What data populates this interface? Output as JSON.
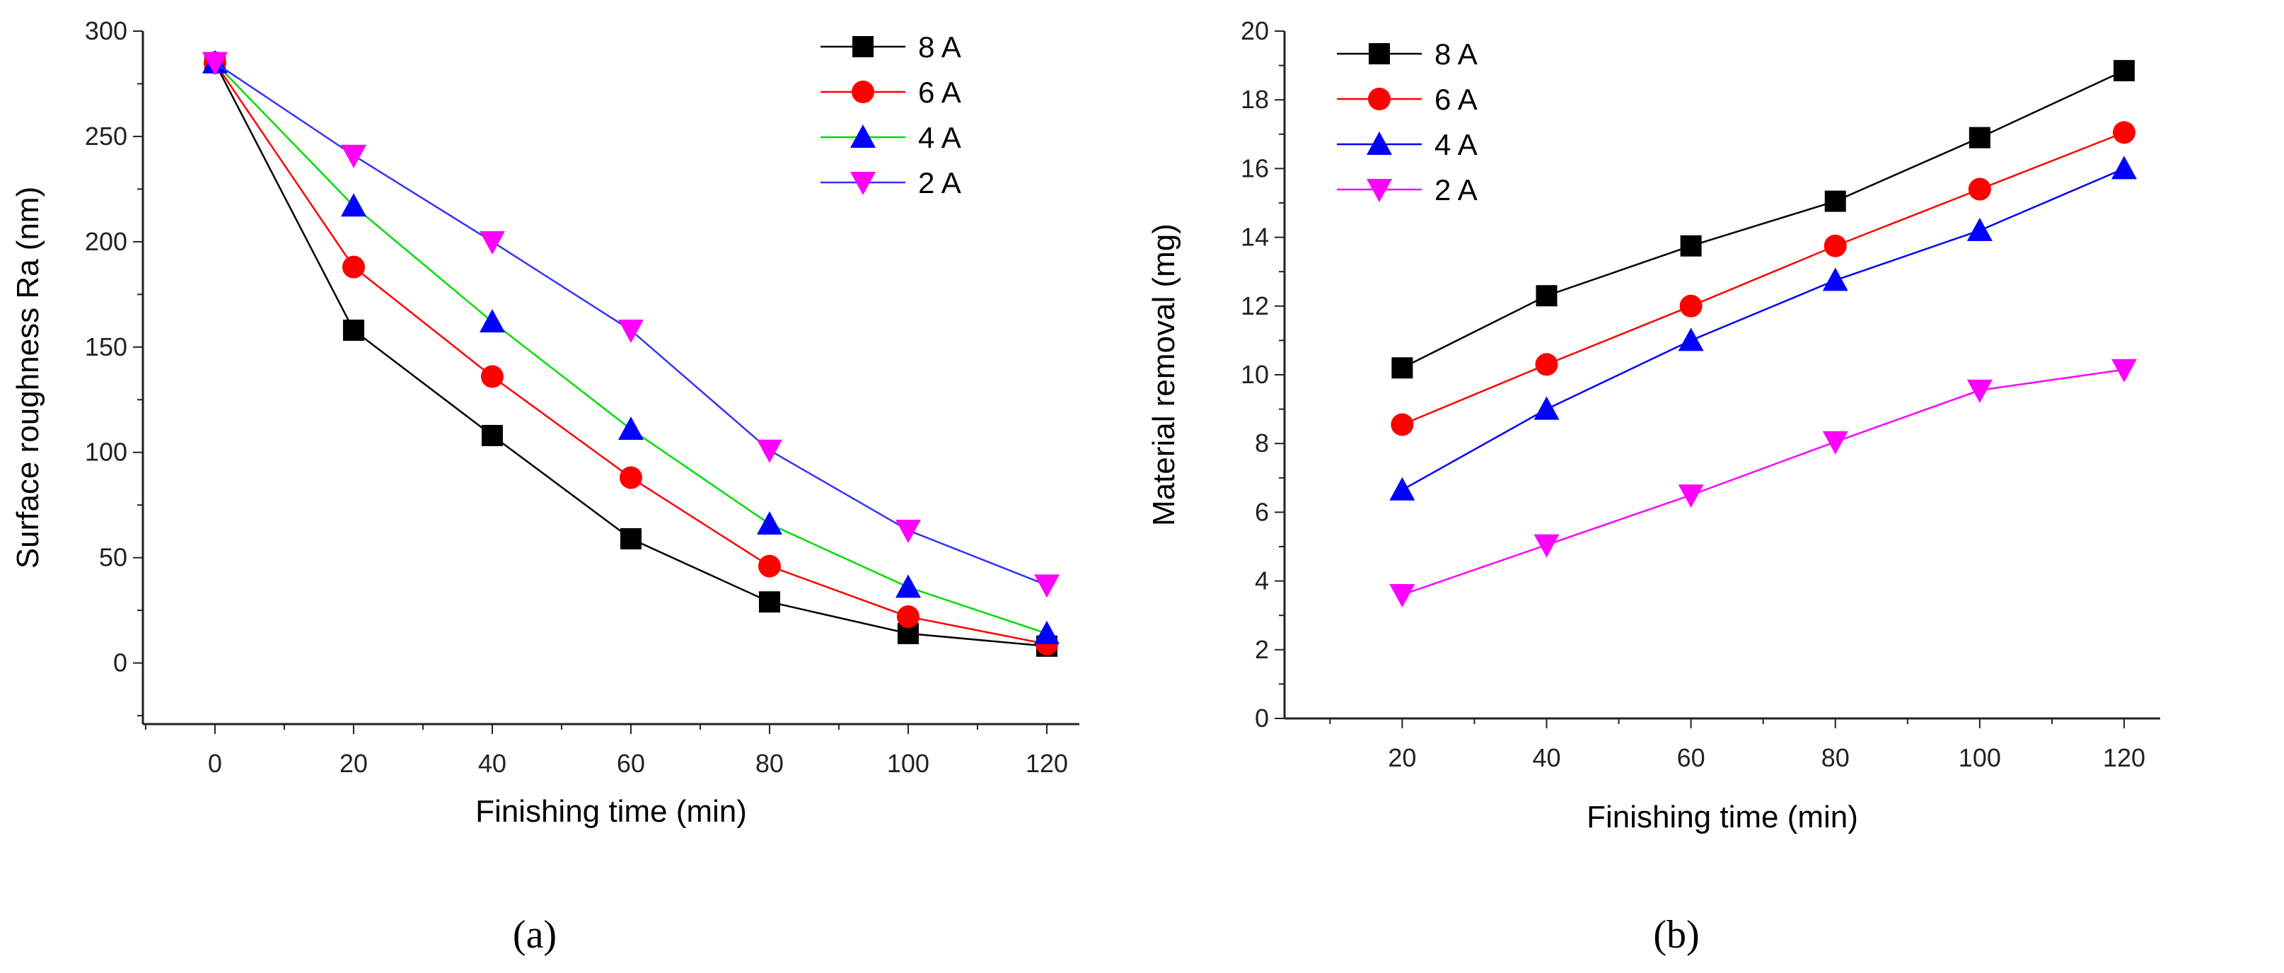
{
  "chart_data": [
    {
      "type": "line",
      "caption": "(a)",
      "caption_letter": "a",
      "xlabel": "Finishing time (min)",
      "ylabel": "Surface roughness Ra (nm)",
      "x": [
        0,
        20,
        40,
        60,
        80,
        100,
        120
      ],
      "xlim": [
        -10.4,
        124.7
      ],
      "ylim": [
        -29,
        300
      ],
      "xticks": [
        0,
        20,
        40,
        60,
        80,
        100,
        120
      ],
      "yticks": [
        0,
        50,
        100,
        150,
        200,
        250,
        300
      ],
      "grid": false,
      "legend_position": "top-right",
      "series": [
        {
          "name": "8 A",
          "values": [
            285,
            158,
            108,
            59,
            29,
            14,
            8
          ],
          "line_color": "#000000",
          "marker_color": "#000000",
          "marker": "square"
        },
        {
          "name": "6 A",
          "values": [
            285,
            188,
            136,
            88,
            46,
            22,
            9
          ],
          "line_color": "#ff0000",
          "marker_color": "#ff0000",
          "marker": "circle"
        },
        {
          "name": "4 A",
          "values": [
            285,
            217,
            162,
            111,
            66,
            36,
            14
          ],
          "line_color": "#00dd00",
          "marker_color": "#0000ff",
          "marker": "triangle-up"
        },
        {
          "name": "2 A",
          "values": [
            285,
            241,
            200,
            158,
            101,
            63,
            37
          ],
          "line_color": "#3333ff",
          "marker_color": "#ff00ff",
          "marker": "triangle-down"
        }
      ]
    },
    {
      "type": "line",
      "caption": "(b)",
      "caption_letter": "b",
      "xlabel": "Finishing time (min)",
      "ylabel": "Material removal (mg)",
      "x": [
        20,
        40,
        60,
        80,
        100,
        120
      ],
      "xlim": [
        3.7,
        125
      ],
      "ylim": [
        0,
        20
      ],
      "xticks": [
        20,
        40,
        60,
        80,
        100,
        120
      ],
      "yticks": [
        0,
        2,
        4,
        6,
        8,
        10,
        12,
        14,
        16,
        18,
        20
      ],
      "grid": false,
      "legend_position": "top-left",
      "series": [
        {
          "name": "8 A",
          "values": [
            10.2,
            12.3,
            13.75,
            15.05,
            16.9,
            18.85
          ],
          "line_color": "#000000",
          "marker_color": "#000000",
          "marker": "square"
        },
        {
          "name": "6 A",
          "values": [
            8.55,
            10.3,
            12.0,
            13.75,
            15.4,
            17.05
          ],
          "line_color": "#ff0000",
          "marker_color": "#ff0000",
          "marker": "circle"
        },
        {
          "name": "4 A",
          "values": [
            6.65,
            9.0,
            11.0,
            12.75,
            14.2,
            16.0
          ],
          "line_color": "#0000ff",
          "marker_color": "#0000ff",
          "marker": "triangle-up"
        },
        {
          "name": "2 A",
          "values": [
            3.6,
            5.05,
            6.5,
            8.05,
            9.55,
            10.15
          ],
          "line_color": "#ff00ff",
          "marker_color": "#ff00ff",
          "marker": "triangle-down"
        }
      ]
    }
  ]
}
